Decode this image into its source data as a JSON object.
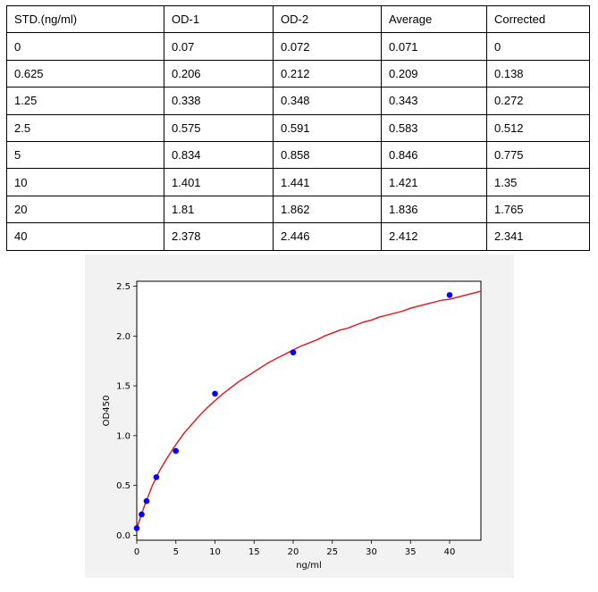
{
  "table": {
    "headers": [
      "STD.(ng/ml)",
      "OD-1",
      "OD-2",
      "Average",
      "Corrected"
    ],
    "rows": [
      [
        "0",
        "0.07",
        "0.072",
        "0.071",
        "0"
      ],
      [
        "0.625",
        "0.206",
        "0.212",
        "0.209",
        "0.138"
      ],
      [
        "1.25",
        "0.338",
        "0.348",
        "0.343",
        "0.272"
      ],
      [
        "2.5",
        "0.575",
        "0.591",
        "0.583",
        "0.512"
      ],
      [
        "5",
        "0.834",
        "0.858",
        "0.846",
        "0.775"
      ],
      [
        "10",
        "1.401",
        "1.441",
        "1.421",
        "1.35"
      ],
      [
        "20",
        "1.81",
        "1.862",
        "1.836",
        "1.765"
      ],
      [
        "40",
        "2.378",
        "2.446",
        "2.412",
        "2.341"
      ]
    ]
  },
  "chart_data": {
    "type": "scatter",
    "xlabel": "ng/ml",
    "ylabel": "OD450",
    "xlim": [
      0,
      44
    ],
    "ylim": [
      -0.05,
      2.55
    ],
    "xticks": [
      0,
      5,
      10,
      15,
      20,
      25,
      30,
      35,
      40
    ],
    "xtick_labels": [
      "0",
      "5",
      "10",
      "15",
      "20",
      "25",
      "30",
      "35",
      "40"
    ],
    "yticks": [
      0.0,
      0.5,
      1.0,
      1.5,
      2.0,
      2.5
    ],
    "ytick_labels": [
      "0.0",
      "0.5",
      "1.0",
      "1.5",
      "2.0",
      "2.5"
    ],
    "grid": true,
    "points": {
      "x": [
        0,
        0.625,
        1.25,
        2.5,
        5,
        10,
        20,
        40
      ],
      "y": [
        0.071,
        0.209,
        0.343,
        0.583,
        0.846,
        1.421,
        1.836,
        2.412
      ],
      "color": "#0000ff"
    },
    "fit_curve": {
      "color": "#dd2222",
      "x": [
        0,
        1,
        2,
        3,
        4,
        5,
        6,
        7,
        8,
        9,
        10,
        11,
        12,
        13,
        14,
        15,
        16,
        17,
        18,
        19,
        20,
        21,
        22,
        23,
        24,
        25,
        26,
        27,
        28,
        29,
        30,
        31,
        32,
        33,
        34,
        35,
        36,
        37,
        38,
        39,
        40,
        41,
        42,
        43,
        44
      ],
      "y": [
        0.07,
        0.3,
        0.5,
        0.66,
        0.79,
        0.91,
        1.02,
        1.11,
        1.2,
        1.28,
        1.35,
        1.42,
        1.48,
        1.54,
        1.59,
        1.64,
        1.69,
        1.74,
        1.78,
        1.82,
        1.86,
        1.9,
        1.93,
        1.96,
        2.0,
        2.03,
        2.06,
        2.08,
        2.11,
        2.14,
        2.16,
        2.19,
        2.21,
        2.23,
        2.25,
        2.28,
        2.3,
        2.32,
        2.34,
        2.36,
        2.37,
        2.39,
        2.41,
        2.43,
        2.45
      ]
    }
  }
}
